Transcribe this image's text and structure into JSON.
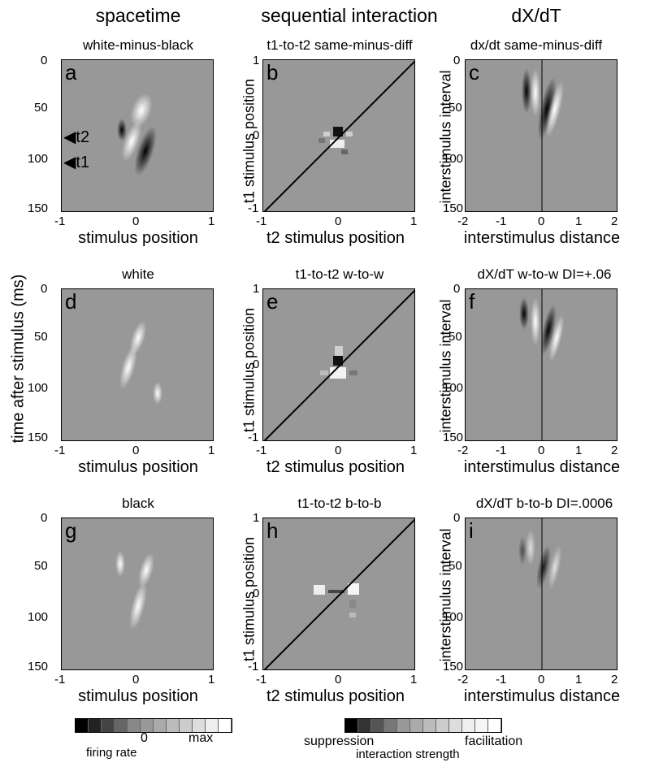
{
  "column_headers": [
    "spacetime",
    "sequential interaction",
    "dX/dT"
  ],
  "left_axis_label": "time after stimulus (ms)",
  "panels": [
    {
      "letter": "a",
      "title": "white-minus-black",
      "xlabel": "stimulus position",
      "xticks": [
        "-1",
        "0",
        "1"
      ],
      "yticks": [
        "0",
        "50",
        "100",
        "150"
      ],
      "markers": [
        "t2",
        "t1"
      ]
    },
    {
      "letter": "b",
      "title": "t1-to-t2 same-minus-diff",
      "xlabel": "t2 stimulus position",
      "ylabel": "t1 stimulus position",
      "xticks": [
        "-1",
        "0",
        "1"
      ],
      "yticks": [
        "1",
        "0",
        "-1"
      ]
    },
    {
      "letter": "c",
      "title": "dx/dt same-minus-diff",
      "xlabel": "interstimulus distance",
      "ylabel": "interstimulus interval",
      "xticks": [
        "-2",
        "-1",
        "0",
        "1",
        "2"
      ],
      "yticks": [
        "0",
        "50",
        "100",
        "150"
      ]
    },
    {
      "letter": "d",
      "title": "white",
      "xlabel": "stimulus position",
      "xticks": [
        "-1",
        "0",
        "1"
      ],
      "yticks": [
        "0",
        "50",
        "100",
        "150"
      ]
    },
    {
      "letter": "e",
      "title": "t1-to-t2 w-to-w",
      "xlabel": "t2 stimulus position",
      "ylabel": "t1 stimulus position",
      "xticks": [
        "-1",
        "0",
        "1"
      ],
      "yticks": [
        "1",
        "0",
        "-1"
      ]
    },
    {
      "letter": "f",
      "title": "dX/dT w-to-w   DI=+.06",
      "xlabel": "interstimulus distance",
      "ylabel": "interstimulus interval",
      "xticks": [
        "-2",
        "-1",
        "0",
        "1",
        "2"
      ],
      "yticks": [
        "0",
        "50",
        "100",
        "150"
      ]
    },
    {
      "letter": "g",
      "title": "black",
      "xlabel": "stimulus position",
      "xticks": [
        "-1",
        "0",
        "1"
      ],
      "yticks": [
        "0",
        "50",
        "100",
        "150"
      ]
    },
    {
      "letter": "h",
      "title": "t1-to-t2 b-to-b",
      "xlabel": "t2 stimulus position",
      "ylabel": "t1 stimulus position",
      "xticks": [
        "-1",
        "0",
        "1"
      ],
      "yticks": [
        "1",
        "0",
        "-1"
      ]
    },
    {
      "letter": "i",
      "title": "dX/dT b-to-b   DI=.0006",
      "xlabel": "interstimulus distance",
      "ylabel": "interstimulus interval",
      "xticks": [
        "-2",
        "-1",
        "0",
        "1",
        "2"
      ],
      "yticks": [
        "0",
        "50",
        "100",
        "150"
      ]
    }
  ],
  "colorbar_left": {
    "zero_label": "0",
    "max_label": "max",
    "caption": "firing rate"
  },
  "colorbar_right": {
    "low_label": "suppression",
    "high_label": "facilitation",
    "caption": "interaction strength"
  }
}
